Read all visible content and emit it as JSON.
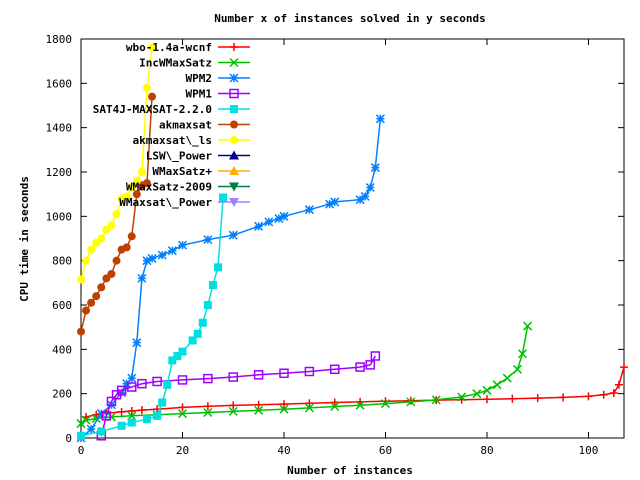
{
  "chart_data": {
    "type": "line",
    "title": "Number x of instances solved in y seconds",
    "xlabel": "Number of instances",
    "ylabel": "CPU time in seconds",
    "xlim": [
      0,
      107
    ],
    "ylim": [
      0,
      1800
    ],
    "xticks": [
      0,
      20,
      40,
      60,
      80,
      100
    ],
    "yticks": [
      0,
      200,
      400,
      600,
      800,
      1000,
      1200,
      1400,
      1600,
      1800
    ],
    "legend_position": "top-left",
    "series": [
      {
        "name": "wbo-1.4a-wcnf",
        "color": "#ff0000",
        "marker": "plus",
        "points": [
          [
            1,
            95
          ],
          [
            3,
            105
          ],
          [
            5,
            112
          ],
          [
            8,
            118
          ],
          [
            10,
            122
          ],
          [
            12,
            126
          ],
          [
            15,
            130
          ],
          [
            20,
            138
          ],
          [
            25,
            143
          ],
          [
            30,
            147
          ],
          [
            35,
            150
          ],
          [
            40,
            153
          ],
          [
            45,
            157
          ],
          [
            50,
            160
          ],
          [
            55,
            163
          ],
          [
            60,
            166
          ],
          [
            65,
            168
          ],
          [
            70,
            171
          ],
          [
            75,
            173
          ],
          [
            80,
            175
          ],
          [
            85,
            177
          ],
          [
            90,
            180
          ],
          [
            95,
            183
          ],
          [
            100,
            188
          ],
          [
            103,
            195
          ],
          [
            105,
            203
          ],
          [
            106,
            240
          ],
          [
            107,
            320
          ]
        ]
      },
      {
        "name": "IncWMaxSatz",
        "color": "#00c000",
        "marker": "x",
        "points": [
          [
            0,
            65
          ],
          [
            1,
            80
          ],
          [
            3,
            88
          ],
          [
            6,
            95
          ],
          [
            10,
            100
          ],
          [
            15,
            105
          ],
          [
            20,
            110
          ],
          [
            25,
            115
          ],
          [
            30,
            120
          ],
          [
            35,
            125
          ],
          [
            40,
            130
          ],
          [
            45,
            136
          ],
          [
            50,
            142
          ],
          [
            55,
            148
          ],
          [
            60,
            155
          ],
          [
            65,
            163
          ],
          [
            70,
            172
          ],
          [
            75,
            185
          ],
          [
            78,
            200
          ],
          [
            80,
            215
          ],
          [
            82,
            240
          ],
          [
            84,
            270
          ],
          [
            86,
            310
          ],
          [
            87,
            380
          ],
          [
            88,
            505
          ]
        ]
      },
      {
        "name": "WPM2",
        "color": "#0080ff",
        "marker": "star",
        "points": [
          [
            0,
            0
          ],
          [
            2,
            40
          ],
          [
            4,
            110
          ],
          [
            6,
            150
          ],
          [
            8,
            205
          ],
          [
            9,
            245
          ],
          [
            10,
            270
          ],
          [
            11,
            430
          ],
          [
            12,
            720
          ],
          [
            13,
            800
          ],
          [
            14,
            810
          ],
          [
            16,
            825
          ],
          [
            18,
            845
          ],
          [
            20,
            870
          ],
          [
            25,
            895
          ],
          [
            30,
            915
          ],
          [
            35,
            955
          ],
          [
            37,
            975
          ],
          [
            39,
            990
          ],
          [
            40,
            1000
          ],
          [
            45,
            1030
          ],
          [
            49,
            1055
          ],
          [
            50,
            1065
          ],
          [
            55,
            1075
          ],
          [
            56,
            1090
          ],
          [
            57,
            1130
          ],
          [
            58,
            1220
          ],
          [
            59,
            1440
          ]
        ]
      },
      {
        "name": "WPM1",
        "color": "#a000ff",
        "marker": "square",
        "points": [
          [
            4,
            10
          ],
          [
            5,
            100
          ],
          [
            6,
            165
          ],
          [
            7,
            195
          ],
          [
            8,
            215
          ],
          [
            10,
            230
          ],
          [
            12,
            245
          ],
          [
            15,
            255
          ],
          [
            20,
            262
          ],
          [
            25,
            268
          ],
          [
            30,
            275
          ],
          [
            35,
            285
          ],
          [
            40,
            292
          ],
          [
            45,
            300
          ],
          [
            50,
            310
          ],
          [
            55,
            320
          ],
          [
            57,
            330
          ],
          [
            58,
            370
          ]
        ]
      },
      {
        "name": "SAT4J-MAXSAT-2.2.0",
        "color": "#00e0e0",
        "marker": "filled-square",
        "points": [
          [
            0,
            10
          ],
          [
            4,
            30
          ],
          [
            8,
            55
          ],
          [
            10,
            70
          ],
          [
            13,
            85
          ],
          [
            15,
            100
          ],
          [
            16,
            160
          ],
          [
            17,
            240
          ],
          [
            18,
            350
          ],
          [
            19,
            370
          ],
          [
            20,
            390
          ],
          [
            22,
            440
          ],
          [
            23,
            470
          ],
          [
            24,
            520
          ],
          [
            25,
            600
          ],
          [
            26,
            690
          ],
          [
            27,
            770
          ],
          [
            28,
            1085
          ]
        ]
      },
      {
        "name": "akmaxsat",
        "color": "#c04000",
        "marker": "filled-circle",
        "points": [
          [
            0,
            480
          ],
          [
            1,
            575
          ],
          [
            2,
            610
          ],
          [
            3,
            640
          ],
          [
            4,
            680
          ],
          [
            5,
            720
          ],
          [
            6,
            740
          ],
          [
            7,
            800
          ],
          [
            8,
            850
          ],
          [
            9,
            860
          ],
          [
            10,
            910
          ],
          [
            11,
            1100
          ],
          [
            12,
            1140
          ],
          [
            13,
            1150
          ],
          [
            14,
            1540
          ]
        ]
      },
      {
        "name": "akmaxsat\\_ls",
        "color": "#ffff00",
        "marker": "filled-circle",
        "points": [
          [
            0,
            715
          ],
          [
            1,
            800
          ],
          [
            2,
            850
          ],
          [
            3,
            880
          ],
          [
            4,
            900
          ],
          [
            5,
            940
          ],
          [
            6,
            960
          ],
          [
            7,
            1010
          ],
          [
            8,
            1080
          ],
          [
            9,
            1090
          ],
          [
            10,
            1130
          ],
          [
            11,
            1160
          ],
          [
            12,
            1200
          ],
          [
            13,
            1580
          ],
          [
            14,
            1760
          ]
        ]
      },
      {
        "name": "LSW\\_Power",
        "color": "#000080",
        "marker": "filled-triangle-up",
        "points": []
      },
      {
        "name": "WMaxSatz+",
        "color": "#ffb000",
        "marker": "filled-triangle-up",
        "points": []
      },
      {
        "name": "WMaxSatz-2009",
        "color": "#008040",
        "marker": "filled-triangle-down",
        "points": []
      },
      {
        "name": "WMaxsat\\_Power",
        "color": "#a080ff",
        "marker": "filled-triangle-down",
        "points": []
      }
    ]
  }
}
